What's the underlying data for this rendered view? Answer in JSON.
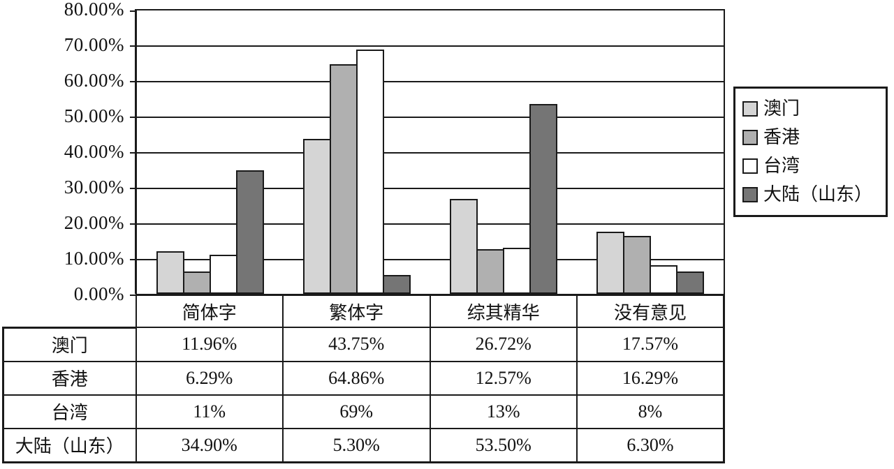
{
  "chart_data": {
    "type": "bar",
    "title": "",
    "categories": [
      "简体字",
      "繁体字",
      "综其精华",
      "没有意见"
    ],
    "series": [
      {
        "name": "澳门",
        "color": "#d5d5d5",
        "values": [
          11.96,
          43.75,
          26.72,
          17.57
        ],
        "labels": [
          "11.96%",
          "43.75%",
          "26.72%",
          "17.57%"
        ]
      },
      {
        "name": "香港",
        "color": "#b0b0b0",
        "values": [
          6.29,
          64.86,
          12.57,
          16.29
        ],
        "labels": [
          "6.29%",
          "64.86%",
          "12.57%",
          "16.29%"
        ]
      },
      {
        "name": "台湾",
        "color": "#ffffff",
        "values": [
          11,
          69,
          13,
          8
        ],
        "labels": [
          "11%",
          "69%",
          "13%",
          "8%"
        ]
      },
      {
        "name": "大陆（山东）",
        "color": "#757575",
        "values": [
          34.9,
          5.3,
          53.5,
          6.3
        ],
        "labels": [
          "34.90%",
          "5.30%",
          "53.50%",
          "6.30%"
        ]
      }
    ],
    "y_axis": {
      "min": 0,
      "max": 80,
      "step": 10,
      "tick_labels": [
        "80.00%",
        "70.00%",
        "60.00%",
        "50.00%",
        "40.00%",
        "30.00%",
        "20.00%",
        "10.00%",
        "0.00%"
      ]
    },
    "legend": {
      "position": "right",
      "entries": [
        "澳门",
        "香港",
        "台湾",
        "大陆（山东）"
      ]
    },
    "grid": true,
    "axis_color": "#1a1a1a"
  }
}
